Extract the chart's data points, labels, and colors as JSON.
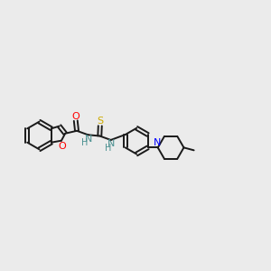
{
  "bg_color": "#ebebeb",
  "bond_color": "#1a1a1a",
  "O_color": "#ff0000",
  "N_color": "#4a9090",
  "S_color": "#ccaa00",
  "N2_color": "#0000ff",
  "figsize": [
    3.0,
    3.0
  ],
  "dpi": 100,
  "xlim": [
    0,
    12
  ],
  "ylim": [
    2,
    8
  ]
}
